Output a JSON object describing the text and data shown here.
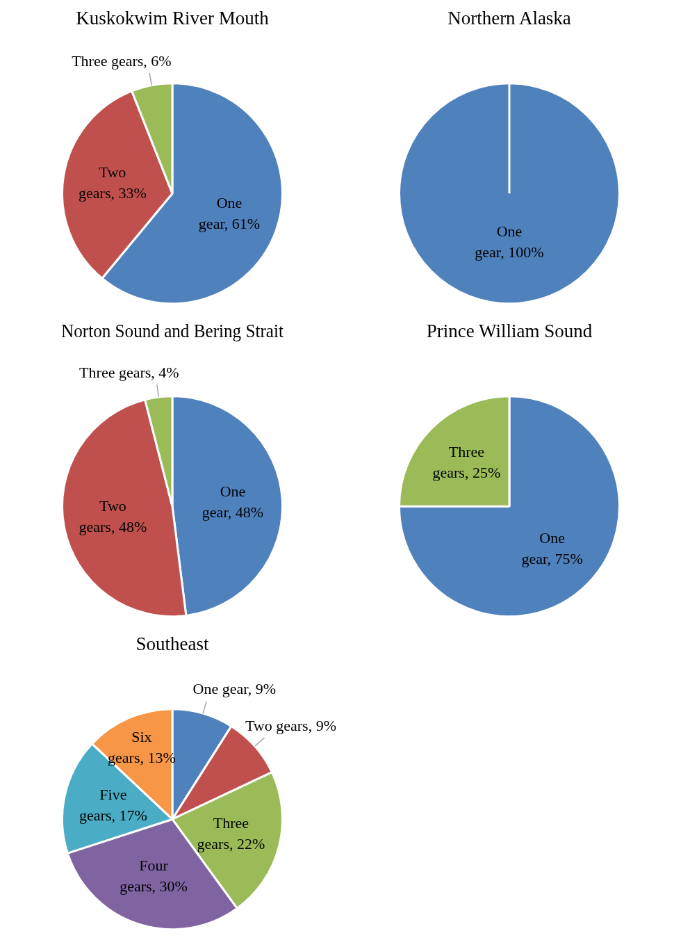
{
  "chart_data": [
    {
      "type": "pie",
      "title": "Kuskokwim River Mouth",
      "categories": [
        "One gear",
        "Two gears",
        "Three gears"
      ],
      "values": [
        61,
        33,
        6
      ],
      "value_labels": [
        "61%",
        "33%",
        "6%"
      ],
      "colors": [
        "#4f81bd",
        "#c0504d",
        "#9bbb59"
      ]
    },
    {
      "type": "pie",
      "title": "Northern Alaska",
      "categories": [
        "One gear"
      ],
      "values": [
        100
      ],
      "value_labels": [
        "100%"
      ],
      "colors": [
        "#4f81bd"
      ]
    },
    {
      "type": "pie",
      "title": "Norton Sound and Bering Strait",
      "categories": [
        "One gear",
        "Two gears",
        "Three gears"
      ],
      "values": [
        48,
        48,
        4
      ],
      "value_labels": [
        "48%",
        "48%",
        "4%"
      ],
      "colors": [
        "#4f81bd",
        "#c0504d",
        "#9bbb59"
      ]
    },
    {
      "type": "pie",
      "title": "Prince William Sound",
      "categories": [
        "One gear",
        "Three gears"
      ],
      "values": [
        75,
        25
      ],
      "value_labels": [
        "75%",
        "25%"
      ],
      "colors": [
        "#4f81bd",
        "#9bbb59"
      ]
    },
    {
      "type": "pie",
      "title": "Southeast",
      "categories": [
        "One gear",
        "Two gears",
        "Three gears",
        "Four gears",
        "Five gears",
        "Six gears"
      ],
      "values": [
        9,
        9,
        22,
        30,
        17,
        13
      ],
      "value_labels": [
        "9%",
        "9%",
        "22%",
        "30%",
        "17%",
        "13%"
      ],
      "colors": [
        "#4f81bd",
        "#c0504d",
        "#9bbb59",
        "#8064a2",
        "#4bacc6",
        "#f79646"
      ]
    }
  ]
}
